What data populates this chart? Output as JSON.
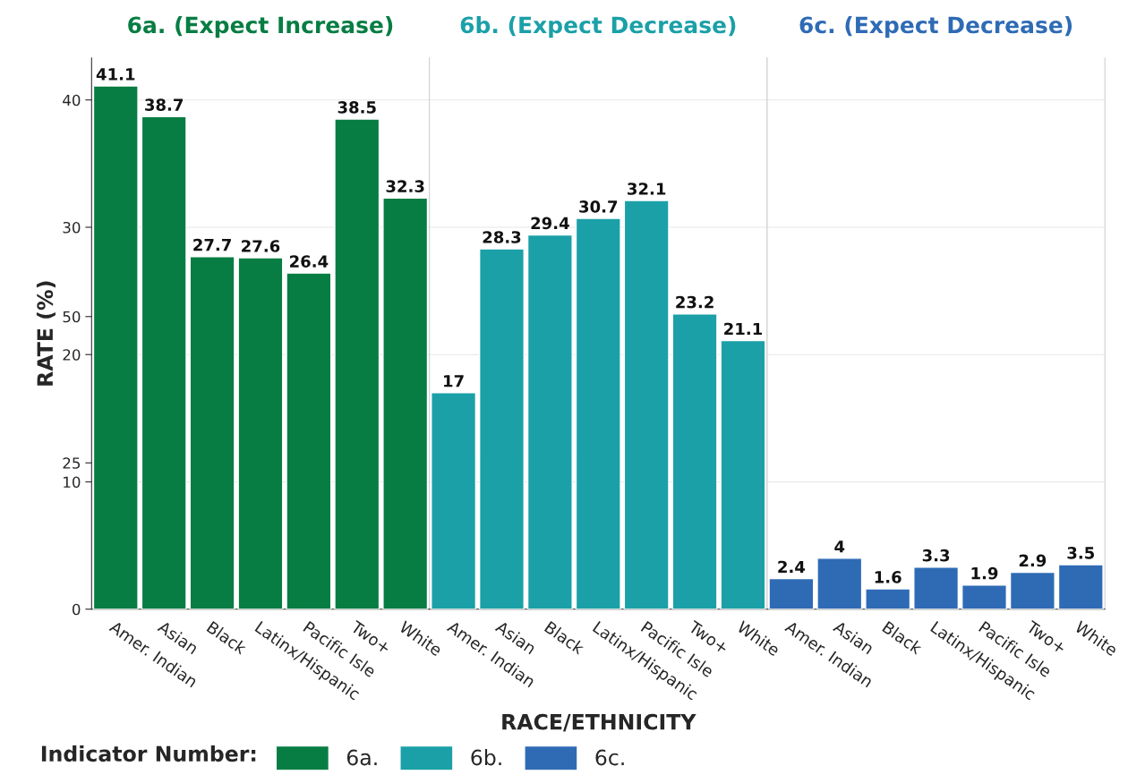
{
  "chart_data": [
    {
      "type": "bar",
      "title": "6a. (Expect Increase)",
      "ylabel": "RATE (%)",
      "categories": [
        "Amer. Indian",
        "Asian",
        "Black",
        "Latinx/Hispanic",
        "Pacific Isle",
        "Two+",
        "White"
      ],
      "series": [
        {
          "name": "6a.",
          "color": "#077d43",
          "values": [
            41.1,
            38.7,
            27.7,
            27.6,
            26.4,
            38.5,
            32.3
          ]
        }
      ],
      "ylim": [
        0,
        43.3
      ],
      "yticks": [
        0,
        10,
        20,
        30,
        40
      ],
      "y2lim": [
        0,
        94.2
      ],
      "y2ticks": [
        25,
        50
      ],
      "data_labels": true,
      "grid": "y"
    },
    {
      "type": "bar",
      "title": "6b. (Expect Decrease)",
      "xlabel": "RACE/ETHNICITY",
      "categories": [
        "Amer. Indian",
        "Asian",
        "Black",
        "Latinx/Hispanic",
        "Pacific Isle",
        "Two+",
        "White"
      ],
      "series": [
        {
          "name": "6b.",
          "color": "#1ba0a8",
          "values": [
            17,
            28.3,
            29.4,
            30.7,
            32.1,
            23.2,
            21.1
          ]
        }
      ],
      "ylim": [
        0,
        43.3
      ],
      "yticks": [
        0,
        10,
        20,
        30,
        40
      ],
      "tick_labels": "x",
      "data_labels": true,
      "grid": "y",
      "legend": "bottom left",
      "legend_title": "Indicator Number:"
    },
    {
      "type": "bar",
      "title": "6c. (Expect Decrease)",
      "categories": [
        "Amer. Indian",
        "Asian",
        "Black",
        "Latinx/Hispanic",
        "Pacific Isle",
        "Two+",
        "White"
      ],
      "series": [
        {
          "name": "6c.",
          "color": "#2f6bb5",
          "values": [
            2.4,
            4,
            1.6,
            3.3,
            1.9,
            2.9,
            3.5
          ]
        }
      ],
      "ylim": [
        0,
        43.3
      ],
      "yticks": [
        0,
        10,
        20,
        30,
        40
      ],
      "tick_labels": "x",
      "data_labels": true,
      "grid": "y"
    }
  ]
}
